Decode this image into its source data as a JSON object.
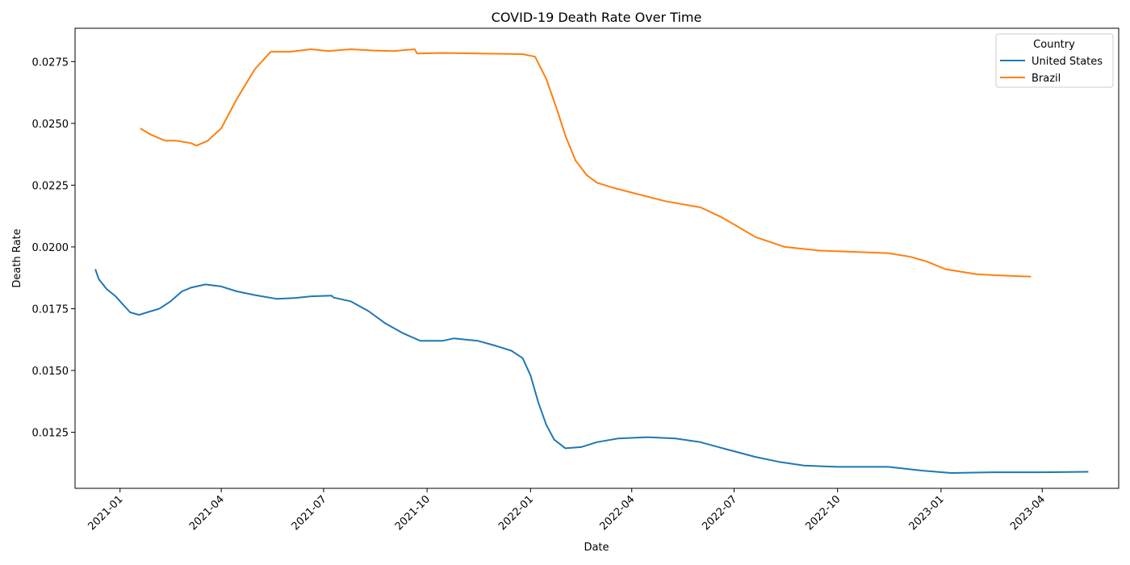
{
  "chart_data": {
    "type": "line",
    "title": "COVID-19 Death Rate Over Time",
    "xlabel": "Date",
    "ylabel": "Death Rate",
    "xlim": [
      "2020-11-22",
      "2023-06-08"
    ],
    "ylim": [
      0.01023,
      0.02885
    ],
    "grid": false,
    "legend": {
      "title": "Country",
      "position": "top-right"
    },
    "x_ticks": [
      "2021-01",
      "2021-04",
      "2021-07",
      "2021-10",
      "2022-01",
      "2022-04",
      "2022-07",
      "2022-10",
      "2023-01",
      "2023-04"
    ],
    "y_ticks": [
      "0.0125",
      "0.0150",
      "0.0175",
      "0.0200",
      "0.0225",
      "0.0250",
      "0.0275"
    ],
    "series": [
      {
        "name": "United States",
        "color": "#1f77b4",
        "points": [
          [
            "2020-12-10",
            0.0191
          ],
          [
            "2020-12-13",
            0.0187
          ],
          [
            "2020-12-20",
            0.0183
          ],
          [
            "2020-12-28",
            0.018
          ],
          [
            "2021-01-05",
            0.0176
          ],
          [
            "2021-01-10",
            0.01735
          ],
          [
            "2021-01-18",
            0.01725
          ],
          [
            "2021-01-25",
            0.01735
          ],
          [
            "2021-02-05",
            0.0175
          ],
          [
            "2021-02-15",
            0.0178
          ],
          [
            "2021-02-25",
            0.0182
          ],
          [
            "2021-03-05",
            0.01835
          ],
          [
            "2021-03-18",
            0.01848
          ],
          [
            "2021-04-01",
            0.0184
          ],
          [
            "2021-04-15",
            0.0182
          ],
          [
            "2021-05-01",
            0.01805
          ],
          [
            "2021-05-20",
            0.0179
          ],
          [
            "2021-06-05",
            0.01793
          ],
          [
            "2021-06-20",
            0.018
          ],
          [
            "2021-07-08",
            0.01803
          ],
          [
            "2021-07-10",
            0.01795
          ],
          [
            "2021-07-25",
            0.0178
          ],
          [
            "2021-08-10",
            0.0174
          ],
          [
            "2021-08-25",
            0.0169
          ],
          [
            "2021-09-10",
            0.0165
          ],
          [
            "2021-09-25",
            0.0162
          ],
          [
            "2021-10-15",
            0.0162
          ],
          [
            "2021-10-25",
            0.0163
          ],
          [
            "2021-11-15",
            0.0162
          ],
          [
            "2021-12-01",
            0.016
          ],
          [
            "2021-12-15",
            0.0158
          ],
          [
            "2021-12-25",
            0.0155
          ],
          [
            "2022-01-01",
            0.0148
          ],
          [
            "2022-01-08",
            0.0137
          ],
          [
            "2022-01-15",
            0.0128
          ],
          [
            "2022-01-22",
            0.0122
          ],
          [
            "2022-02-01",
            0.01185
          ],
          [
            "2022-02-15",
            0.0119
          ],
          [
            "2022-03-01",
            0.0121
          ],
          [
            "2022-03-20",
            0.01225
          ],
          [
            "2022-04-15",
            0.0123
          ],
          [
            "2022-05-10",
            0.01225
          ],
          [
            "2022-06-01",
            0.0121
          ],
          [
            "2022-06-25",
            0.0118
          ],
          [
            "2022-07-20",
            0.0115
          ],
          [
            "2022-08-10",
            0.0113
          ],
          [
            "2022-09-01",
            0.01115
          ],
          [
            "2022-10-01",
            0.0111
          ],
          [
            "2022-11-15",
            0.0111
          ],
          [
            "2022-12-15",
            0.01095
          ],
          [
            "2023-01-10",
            0.01085
          ],
          [
            "2023-02-15",
            0.01088
          ],
          [
            "2023-04-01",
            0.01088
          ],
          [
            "2023-05-12",
            0.0109
          ]
        ]
      },
      {
        "name": "Brazil",
        "color": "#ff7f0e",
        "points": [
          [
            "2021-01-19",
            0.0248
          ],
          [
            "2021-01-28",
            0.02455
          ],
          [
            "2021-02-10",
            0.0243
          ],
          [
            "2021-02-20",
            0.0243
          ],
          [
            "2021-03-05",
            0.0242
          ],
          [
            "2021-03-10",
            0.0241
          ],
          [
            "2021-03-20",
            0.0243
          ],
          [
            "2021-04-01",
            0.0248
          ],
          [
            "2021-04-15",
            0.026
          ],
          [
            "2021-05-01",
            0.0272
          ],
          [
            "2021-05-15",
            0.0279
          ],
          [
            "2021-06-01",
            0.0279
          ],
          [
            "2021-06-20",
            0.028
          ],
          [
            "2021-07-05",
            0.02793
          ],
          [
            "2021-07-25",
            0.028
          ],
          [
            "2021-08-15",
            0.02795
          ],
          [
            "2021-09-01",
            0.02793
          ],
          [
            "2021-09-20",
            0.028
          ],
          [
            "2021-09-22",
            0.02783
          ],
          [
            "2021-10-15",
            0.02785
          ],
          [
            "2021-11-15",
            0.02783
          ],
          [
            "2021-12-25",
            0.0278
          ],
          [
            "2022-01-05",
            0.0277
          ],
          [
            "2022-01-15",
            0.0268
          ],
          [
            "2022-01-25",
            0.0255
          ],
          [
            "2022-02-01",
            0.0245
          ],
          [
            "2022-02-10",
            0.0235
          ],
          [
            "2022-02-20",
            0.0229
          ],
          [
            "2022-03-01",
            0.0226
          ],
          [
            "2022-03-15",
            0.0224
          ],
          [
            "2022-04-01",
            0.0222
          ],
          [
            "2022-05-01",
            0.02185
          ],
          [
            "2022-06-01",
            0.0216
          ],
          [
            "2022-06-20",
            0.0212
          ],
          [
            "2022-07-05",
            0.0208
          ],
          [
            "2022-07-20",
            0.0204
          ],
          [
            "2022-08-15",
            0.02
          ],
          [
            "2022-09-15",
            0.01985
          ],
          [
            "2022-10-15",
            0.0198
          ],
          [
            "2022-11-15",
            0.01975
          ],
          [
            "2022-12-05",
            0.0196
          ],
          [
            "2022-12-20",
            0.0194
          ],
          [
            "2023-01-05",
            0.0191
          ],
          [
            "2023-02-01",
            0.0189
          ],
          [
            "2023-02-20",
            0.01885
          ],
          [
            "2023-03-22",
            0.0188
          ]
        ]
      }
    ]
  }
}
